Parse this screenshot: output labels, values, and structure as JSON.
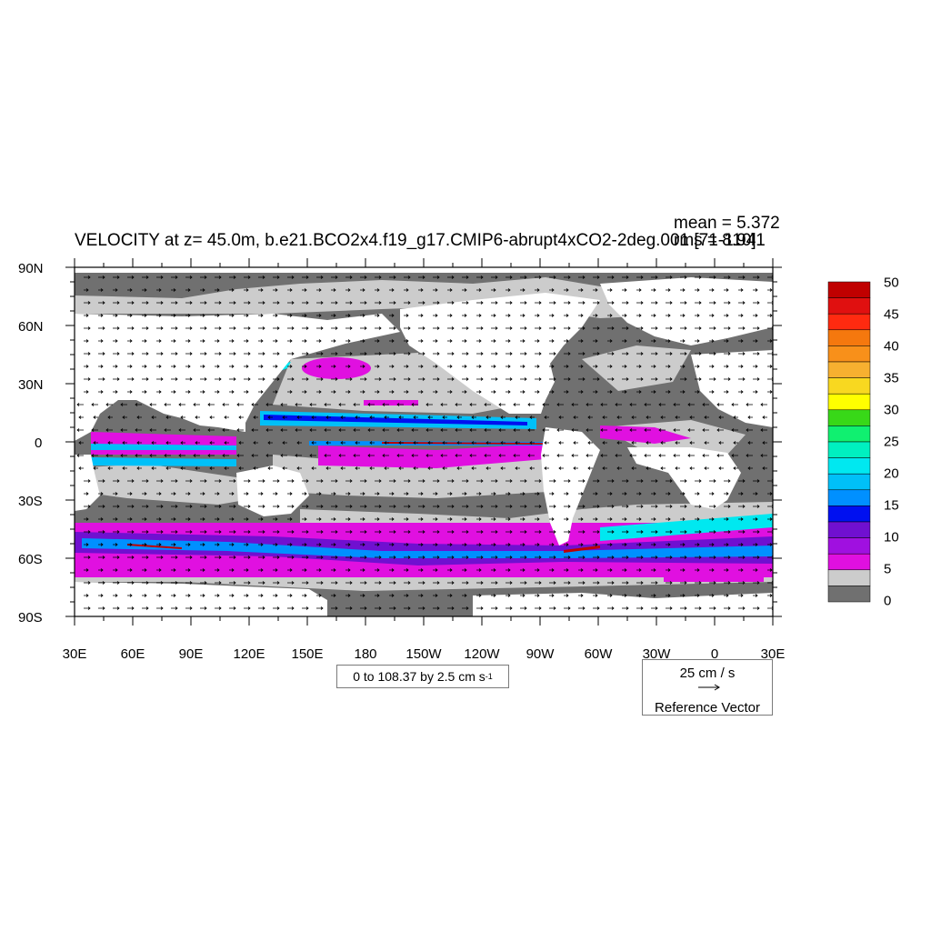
{
  "title": "VELOCITY at z=  45.0m, b.e21.BCO2x4.f19_g17.CMIP6-abrupt4xCO2-2deg.001 [71-110]",
  "stats": {
    "mean": "mean = 5.372",
    "rms": "rms = 8.941"
  },
  "lat_labels": [
    "90N",
    "60N",
    "30N",
    "0",
    "30S",
    "60S",
    "90S"
  ],
  "lon_labels": [
    "30E",
    "60E",
    "90E",
    "120E",
    "150E",
    "180",
    "150W",
    "120W",
    "90W",
    "60W",
    "30W",
    "0",
    "30E"
  ],
  "contour_info": {
    "text": "0 to 108.37 by 2.5 cm s",
    "unit_exp": "-1"
  },
  "reference_vector": {
    "magnitude": "25 cm / s",
    "label": "Reference Vector"
  },
  "colorbar": {
    "labels": [
      "50",
      "45",
      "40",
      "35",
      "30",
      "25",
      "20",
      "15",
      "10",
      "5",
      "0"
    ],
    "colors_top_to_bottom": [
      "#c00000",
      "#e01010",
      "#ff2a10",
      "#f5780e",
      "#f8901a",
      "#f7b030",
      "#f8d820",
      "#ffff00",
      "#38d818",
      "#10f070",
      "#00f0c0",
      "#00e8f0",
      "#00c0f8",
      "#0090ff",
      "#0010f0",
      "#7010d0",
      "#a010e0",
      "#e010e0",
      "#cccccc",
      "#707070"
    ]
  },
  "map_colors": {
    "land": "#ffffff",
    "slow": "#707070",
    "light": "#cccccc",
    "magenta": "#e010e0",
    "purple": "#7010d0",
    "blue": "#0090ff",
    "cyan": "#00e8f0",
    "red": "#c00000"
  }
}
